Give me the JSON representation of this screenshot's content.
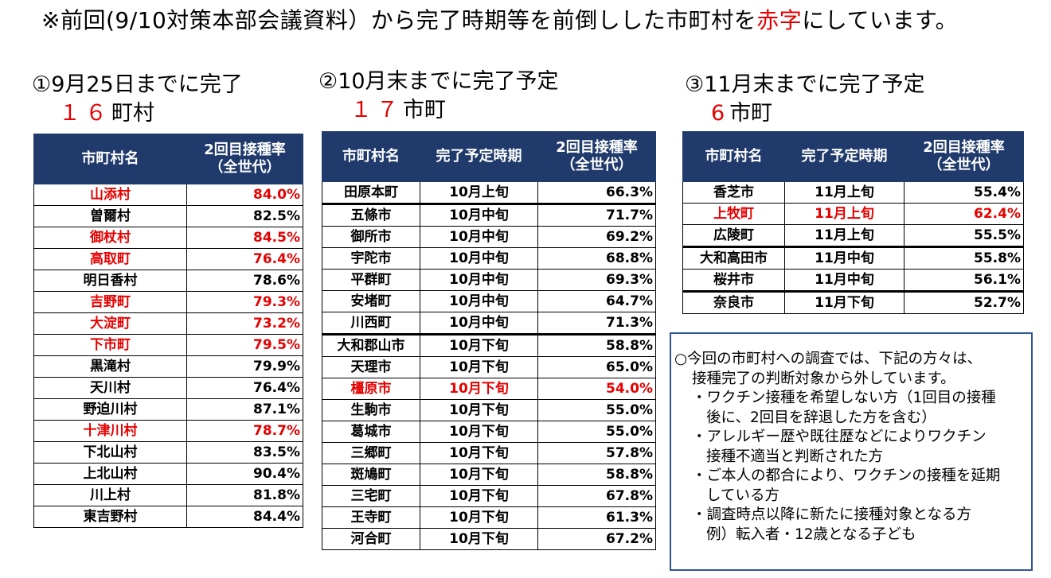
{
  "notice": {
    "prefix": "※前回(9/10対策本部会議資料）から完了時期等を前倒しした市町村を",
    "highlight": "赤字",
    "suffix": "にしています。"
  },
  "section1": {
    "title": "①9月25日までに完了",
    "count": "１６",
    "unit": "町村",
    "headers": [
      "市町村名",
      "2回目接種率\n（全世代）"
    ],
    "rows": [
      {
        "name": "山添村",
        "rate": "84.0%",
        "red": true
      },
      {
        "name": "曽爾村",
        "rate": "82.5%",
        "red": false
      },
      {
        "name": "御杖村",
        "rate": "84.5%",
        "red": true
      },
      {
        "name": "高取町",
        "rate": "76.4%",
        "red": true
      },
      {
        "name": "明日香村",
        "rate": "78.6%",
        "red": false
      },
      {
        "name": "吉野町",
        "rate": "79.3%",
        "red": true
      },
      {
        "name": "大淀町",
        "rate": "73.2%",
        "red": true
      },
      {
        "name": "下市町",
        "rate": "79.5%",
        "red": true
      },
      {
        "name": "黒滝村",
        "rate": "79.9%",
        "red": false
      },
      {
        "name": "天川村",
        "rate": "76.4%",
        "red": false
      },
      {
        "name": "野迫川村",
        "rate": "87.1%",
        "red": false
      },
      {
        "name": "十津川村",
        "rate": "78.7%",
        "red": true
      },
      {
        "name": "下北山村",
        "rate": "83.5%",
        "red": false
      },
      {
        "name": "上北山村",
        "rate": "90.4%",
        "red": false
      },
      {
        "name": "川上村",
        "rate": "81.8%",
        "red": false
      },
      {
        "name": "東吉野村",
        "rate": "84.4%",
        "red": false
      }
    ]
  },
  "section2": {
    "title": "②10月末までに完了予定",
    "count": "１７",
    "unit": "市町",
    "headers": [
      "市町村名",
      "完了予定時期",
      "2回目接種率\n（全世代）"
    ],
    "rows": [
      {
        "name": "田原本町",
        "period": "10月上旬",
        "rate": "66.3%",
        "red": false,
        "sep": true
      },
      {
        "name": "五條市",
        "period": "10月中旬",
        "rate": "71.7%",
        "red": false,
        "sep": false
      },
      {
        "name": "御所市",
        "period": "10月中旬",
        "rate": "69.2%",
        "red": false,
        "sep": false
      },
      {
        "name": "宇陀市",
        "period": "10月中旬",
        "rate": "68.8%",
        "red": false,
        "sep": false
      },
      {
        "name": "平群町",
        "period": "10月中旬",
        "rate": "69.3%",
        "red": false,
        "sep": false
      },
      {
        "name": "安堵町",
        "period": "10月中旬",
        "rate": "64.7%",
        "red": false,
        "sep": false
      },
      {
        "name": "川西町",
        "period": "10月中旬",
        "rate": "71.3%",
        "red": false,
        "sep": true
      },
      {
        "name": "大和郡山市",
        "period": "10月下旬",
        "rate": "58.8%",
        "red": false,
        "sep": false
      },
      {
        "name": "天理市",
        "period": "10月下旬",
        "rate": "65.0%",
        "red": false,
        "sep": false
      },
      {
        "name": "橿原市",
        "period": "10月下旬",
        "rate": "54.0%",
        "red": true,
        "sep": false
      },
      {
        "name": "生駒市",
        "period": "10月下旬",
        "rate": "55.0%",
        "red": false,
        "sep": false
      },
      {
        "name": "葛城市",
        "period": "10月下旬",
        "rate": "55.0%",
        "red": false,
        "sep": false
      },
      {
        "name": "三郷町",
        "period": "10月下旬",
        "rate": "57.8%",
        "red": false,
        "sep": false
      },
      {
        "name": "斑鳩町",
        "period": "10月下旬",
        "rate": "58.8%",
        "red": false,
        "sep": false
      },
      {
        "name": "三宅町",
        "period": "10月下旬",
        "rate": "67.8%",
        "red": false,
        "sep": false
      },
      {
        "name": "王寺町",
        "period": "10月下旬",
        "rate": "61.3%",
        "red": false,
        "sep": false
      },
      {
        "name": "河合町",
        "period": "10月下旬",
        "rate": "67.2%",
        "red": false,
        "sep": false
      }
    ]
  },
  "section3": {
    "title": "③11月末までに完了予定",
    "count": "6",
    "unit": "市町",
    "headers": [
      "市町村名",
      "完了予定時期",
      "2回目接種率\n（全世代）"
    ],
    "rows": [
      {
        "name": "香芝市",
        "period": "11月上旬",
        "rate": "55.4%",
        "red": false,
        "sep": false
      },
      {
        "name": "上牧町",
        "period": "11月上旬",
        "rate": "62.4%",
        "red": true,
        "sep": false
      },
      {
        "name": "広陵町",
        "period": "11月上旬",
        "rate": "55.5%",
        "red": false,
        "sep": true
      },
      {
        "name": "大和高田市",
        "period": "11月中旬",
        "rate": "55.8%",
        "red": false,
        "sep": false
      },
      {
        "name": "桜井市",
        "period": "11月中旬",
        "rate": "56.1%",
        "red": false,
        "sep": true
      },
      {
        "name": "奈良市",
        "period": "11月下旬",
        "rate": "52.7%",
        "red": false,
        "sep": false
      }
    ]
  },
  "note": {
    "lines": [
      {
        "text": "○今回の市町村への調査では、下記の方々は、",
        "indent": 0
      },
      {
        "text": "接種完了の判断対象から外しています。",
        "indent": 1
      },
      {
        "text": "・ワクチン接種を希望しない方（1回目の接種",
        "indent": 1
      },
      {
        "text": "後に、2回目を辞退した方を含む）",
        "indent": 2
      },
      {
        "text": "・アレルギー歴や既往歴などによりワクチン",
        "indent": 1
      },
      {
        "text": "接種不適当と判断された方",
        "indent": 2
      },
      {
        "text": "・ご本人の都合により、ワクチンの接種を延期",
        "indent": 1
      },
      {
        "text": "している方",
        "indent": 2
      },
      {
        "text": "・調査時点以降に新たに接種対象となる方",
        "indent": 1
      },
      {
        "text": "例）転入者・12歳となる子ども",
        "indent": 2
      }
    ]
  }
}
